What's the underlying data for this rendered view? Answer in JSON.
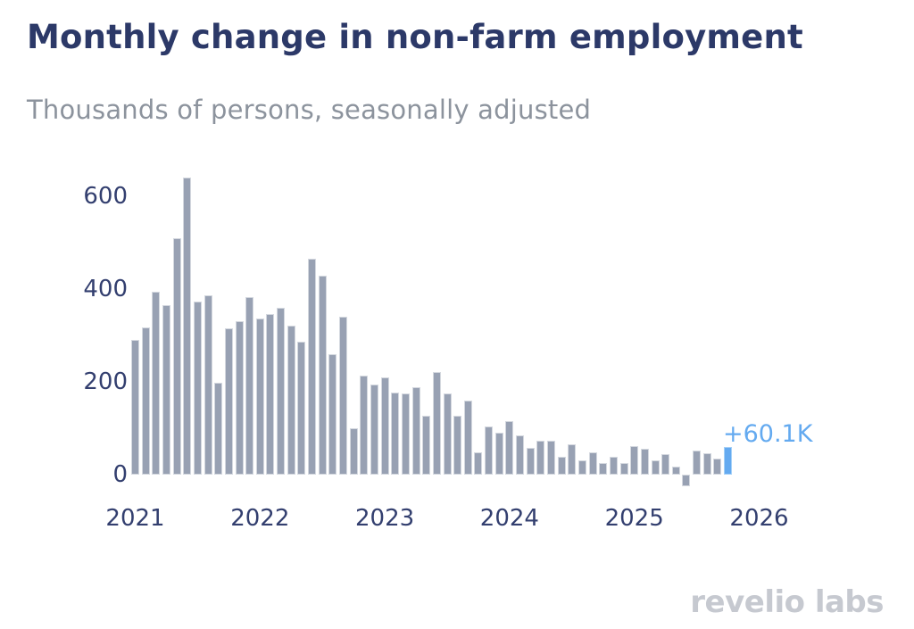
{
  "header": {
    "title": "Monthly change in non-farm employment",
    "subtitle": "Thousands of persons, seasonally adjusted"
  },
  "annotation": {
    "latest_value_label": "+60.1K"
  },
  "footer": {
    "logo_part1": "reveli",
    "logo_o": "o",
    "logo_part2": " labs"
  },
  "colors": {
    "background": "#ffffff",
    "title": "#2c3968",
    "subtitle": "#8c939d",
    "axis_label": "#333f6f",
    "bar_fill": "#98a1b3",
    "bar_border": "#d4d8df",
    "highlight_fill": "#64aaf0",
    "highlight_border": "#a5d0f8",
    "highlight_label": "#64aaf0",
    "logo": "#c6c9d0"
  },
  "chart_data": {
    "type": "bar",
    "title": "Monthly change in non-farm employment",
    "subtitle": "Thousands of persons, seasonally adjusted",
    "unit": "thousands of persons, seasonally adjusted",
    "x": [
      "2021-01",
      "2021-02",
      "2021-03",
      "2021-04",
      "2021-05",
      "2021-06",
      "2021-07",
      "2021-08",
      "2021-09",
      "2021-10",
      "2021-11",
      "2021-12",
      "2022-01",
      "2022-02",
      "2022-03",
      "2022-04",
      "2022-05",
      "2022-06",
      "2022-07",
      "2022-08",
      "2022-09",
      "2022-10",
      "2022-11",
      "2022-12",
      "2023-01",
      "2023-02",
      "2023-03",
      "2023-04",
      "2023-05",
      "2023-06",
      "2023-07",
      "2023-08",
      "2023-09",
      "2023-10",
      "2023-11",
      "2023-12",
      "2024-01",
      "2024-02",
      "2024-03",
      "2024-04",
      "2024-05",
      "2024-06",
      "2024-07",
      "2024-08",
      "2024-09",
      "2024-10",
      "2024-11",
      "2024-12",
      "2025-01",
      "2025-02",
      "2025-03",
      "2025-04",
      "2025-05",
      "2025-06",
      "2025-07",
      "2025-08",
      "2025-09",
      "2025-10"
    ],
    "values": [
      290,
      318,
      395,
      365,
      510,
      640,
      374,
      387,
      198,
      315,
      330,
      383,
      336,
      347,
      360,
      322,
      287,
      465,
      429,
      259,
      341,
      100,
      213,
      194,
      209,
      177,
      175,
      189,
      127,
      221,
      175,
      127,
      159,
      48,
      103,
      91,
      116,
      84,
      57,
      73,
      74,
      38,
      65,
      31,
      48,
      25,
      38,
      25,
      62,
      55,
      30,
      44,
      18,
      -25,
      52,
      47,
      34,
      60.1
    ],
    "highlight_index": 57,
    "highlight_label": "+60.1K",
    "y_ticks": [
      0,
      200,
      400,
      600
    ],
    "x_ticks": [
      "2021",
      "2022",
      "2023",
      "2024",
      "2025",
      "2026"
    ],
    "ylim": [
      -60,
      680
    ],
    "grid": false,
    "legend": false
  }
}
